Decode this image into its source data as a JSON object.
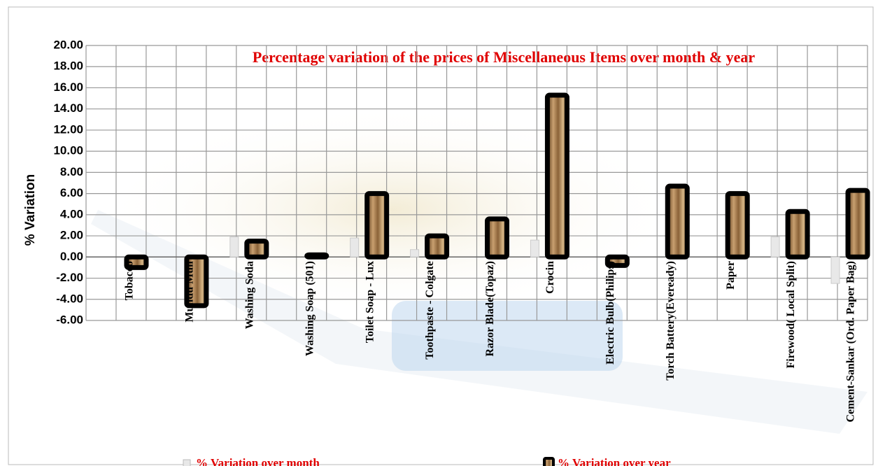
{
  "chart_data": {
    "type": "bar",
    "title": "Percentage variation of the prices of Miscellaneous Items over month & year",
    "y_label": "% Variation",
    "categories": [
      "Tobacco",
      "Mundu Mull",
      "Washing Soda",
      "Washing Soap (501)",
      "Toilet Soap - Lux",
      "Toothpaste - Colgate",
      "Razor Blade(Topaz)",
      "Crocin",
      "Electric Bulb(Philips)",
      "Torch Battery(Eveready)",
      "Paper",
      "Firewood( Local Split)",
      "Cement-Sankar (Ord. Paper Bag)"
    ],
    "series": [
      {
        "name": "% Variation over month",
        "color": "#e8e8e8",
        "values": [
          0,
          0,
          1.9,
          0,
          1.8,
          0.7,
          0,
          1.6,
          0,
          0,
          0,
          1.9,
          -2.5
        ]
      },
      {
        "name": "% Variation over year",
        "color": "#a0784a",
        "values": [
          -1.0,
          -4.6,
          1.5,
          0.2,
          6.0,
          2.0,
          3.6,
          15.3,
          -0.8,
          6.7,
          6.0,
          4.3,
          6.3
        ]
      }
    ],
    "ylim": [
      -6,
      20
    ],
    "yticks": [
      {
        "value": -6,
        "label": "-6.00"
      },
      {
        "value": -4,
        "label": "-4.00"
      },
      {
        "value": -2,
        "label": "-2.00"
      },
      {
        "value": 0,
        "label": "0.00"
      },
      {
        "value": 2,
        "label": "2.00"
      },
      {
        "value": 4,
        "label": "4.00"
      },
      {
        "value": 6,
        "label": "6.00"
      },
      {
        "value": 8,
        "label": "8.00"
      },
      {
        "value": 10,
        "label": "10.00"
      },
      {
        "value": 12,
        "label": "12.00"
      },
      {
        "value": 14,
        "label": "14.00"
      },
      {
        "value": 16,
        "label": "16.00"
      },
      {
        "value": 18,
        "label": "18.00"
      },
      {
        "value": 20,
        "label": "20.00"
      }
    ],
    "grid": true,
    "legend": "bottom"
  }
}
